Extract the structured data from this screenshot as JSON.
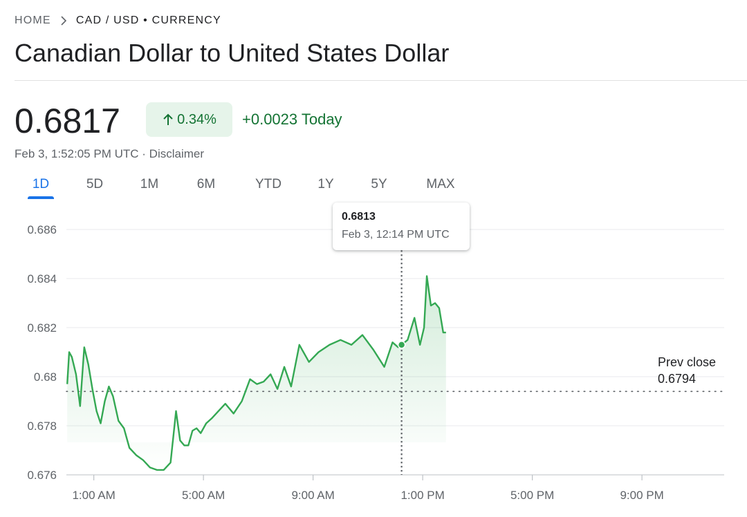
{
  "breadcrumb": {
    "home": "HOME",
    "separator_icon": "chevron-right-icon",
    "current": "CAD / USD • CURRENCY"
  },
  "title": "Canadian Dollar to United States Dollar",
  "quote": {
    "price": "0.6817",
    "change_pct": "0.34%",
    "change_icon": "arrow-up-icon",
    "change_abs": "+0.0023 Today",
    "timestamp": "Feb 3, 1:52:05 PM UTC",
    "separator": "·",
    "disclaimer": "Disclaimer"
  },
  "tabs": [
    "1D",
    "5D",
    "1M",
    "6M",
    "YTD",
    "1Y",
    "5Y",
    "MAX"
  ],
  "active_tab": "1D",
  "tooltip": {
    "value": "0.6813",
    "time": "Feb 3, 12:14 PM UTC"
  },
  "prev_close": {
    "label": "Prev close",
    "value": "0.6794"
  },
  "colors": {
    "up": "#34a853",
    "up_text": "#137333",
    "up_bg": "#e6f4ea",
    "accent": "#1a73e8"
  },
  "chart_data": {
    "type": "line",
    "y_tick_labels": [
      "0.686",
      "0.684",
      "0.682",
      "0.68",
      "0.678",
      "0.676"
    ],
    "y_ticks": [
      0.686,
      0.684,
      0.682,
      0.68,
      0.678,
      0.676
    ],
    "ylim": [
      0.676,
      0.6863
    ],
    "x_tick_labels": [
      "1:00 AM",
      "5:00 AM",
      "9:00 AM",
      "1:00 PM",
      "5:00 PM",
      "9:00 PM"
    ],
    "x_ticks": [
      1,
      5,
      9,
      13,
      17,
      21
    ],
    "xlim": [
      0,
      24
    ],
    "x_unit": "hour UTC",
    "prev_close": 0.6794,
    "hover_x": 12.23,
    "series": [
      {
        "x": [
          0.03,
          0.1,
          0.2,
          0.35,
          0.5,
          0.65,
          0.8,
          0.95,
          1.1,
          1.25,
          1.4,
          1.55,
          1.7,
          1.9,
          2.1,
          2.3,
          2.55,
          2.8,
          3.05,
          3.3,
          3.55,
          3.8,
          4.0,
          4.15,
          4.3,
          4.45,
          4.6,
          4.75,
          4.9,
          5.1,
          5.3,
          5.55,
          5.8,
          6.1,
          6.4,
          6.7,
          6.95,
          7.2,
          7.45,
          7.7,
          7.95,
          8.2,
          8.5,
          8.85,
          9.2,
          9.6,
          10.0,
          10.4,
          10.8,
          11.2,
          11.6,
          11.9,
          12.1,
          12.23,
          12.45,
          12.7,
          12.9,
          13.05,
          13.15,
          13.3,
          13.45,
          13.6,
          13.75,
          13.85
        ],
        "y": [
          0.6797,
          0.681,
          0.6808,
          0.6801,
          0.6788,
          0.6812,
          0.6805,
          0.6795,
          0.6786,
          0.6781,
          0.679,
          0.6796,
          0.6792,
          0.6782,
          0.6779,
          0.6771,
          0.6768,
          0.6766,
          0.6763,
          0.6762,
          0.6762,
          0.6765,
          0.6786,
          0.6774,
          0.6772,
          0.6772,
          0.6778,
          0.6779,
          0.6777,
          0.6781,
          0.6783,
          0.6786,
          0.6789,
          0.6785,
          0.679,
          0.6799,
          0.6797,
          0.6798,
          0.6801,
          0.6795,
          0.6804,
          0.6796,
          0.6813,
          0.6806,
          0.681,
          0.6813,
          0.6815,
          0.6813,
          0.6817,
          0.6811,
          0.6804,
          0.6814,
          0.6812,
          0.6813,
          0.6815,
          0.6824,
          0.6813,
          0.682,
          0.6841,
          0.6829,
          0.683,
          0.6828,
          0.6818,
          0.6818
        ]
      }
    ]
  }
}
